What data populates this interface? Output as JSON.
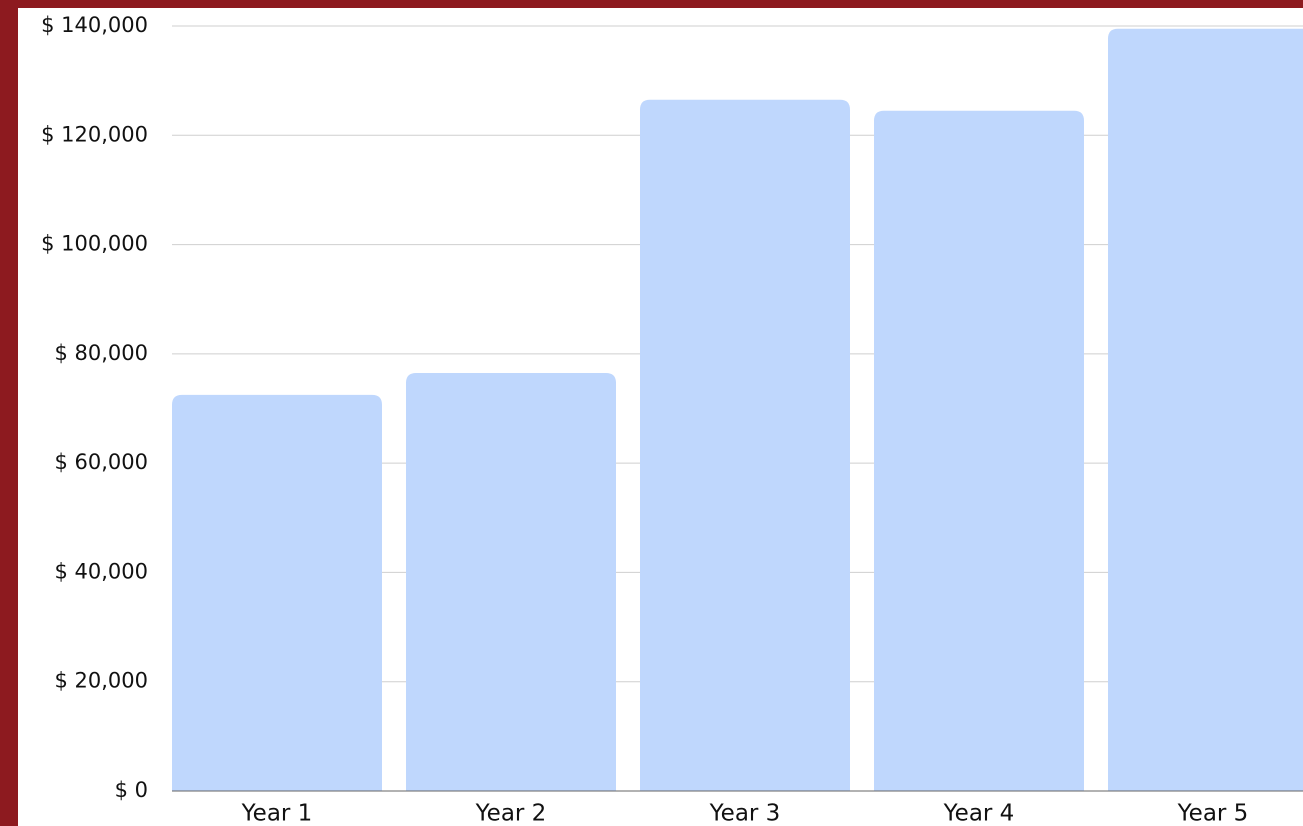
{
  "chart_data": {
    "type": "bar",
    "categories": [
      "Year 1",
      "Year 2",
      "Year 3",
      "Year 4",
      "Year 5"
    ],
    "values": [
      72500,
      76500,
      126500,
      124500,
      139500
    ],
    "color": "#bfd7fd",
    "ylim": [
      0,
      140000
    ],
    "yticks": [
      {
        "value": 0,
        "label": "$ 0"
      },
      {
        "value": 20000,
        "label": "$ 20,000"
      },
      {
        "value": 40000,
        "label": "$ 40,000"
      },
      {
        "value": 60000,
        "label": "$ 60,000"
      },
      {
        "value": 80000,
        "label": "$ 80,000"
      },
      {
        "value": 100000,
        "label": "$ 100,000"
      },
      {
        "value": 120000,
        "label": "$ 120,000"
      },
      {
        "value": 140000,
        "label": "$ 140,000"
      }
    ],
    "grid": true
  }
}
